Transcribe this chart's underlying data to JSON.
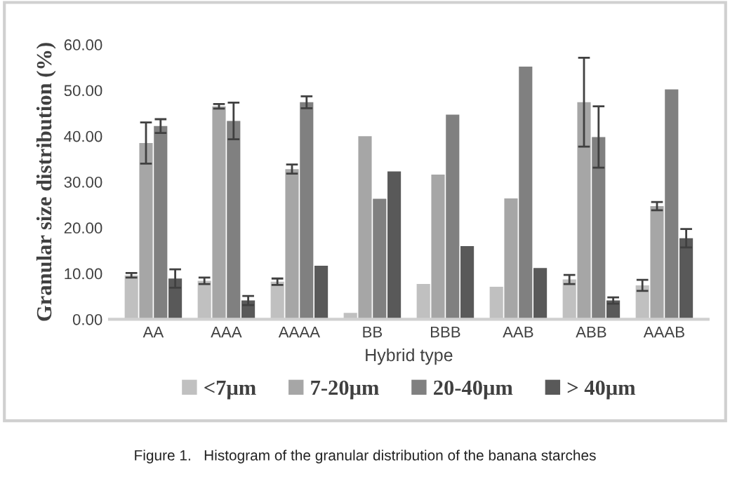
{
  "chart_data": {
    "type": "bar",
    "xlabel": "Hybrid type",
    "ylabel": "Granular size distribution (%)",
    "categories": [
      "AA",
      "AAA",
      "AAAA",
      "BB",
      "BBB",
      "AAB",
      "ABB",
      "AAAB"
    ],
    "series": [
      {
        "name": "<7μm",
        "color": "#c0c0c0",
        "values": [
          9.6,
          8.4,
          8.2,
          1.4,
          7.7,
          7.1,
          8.7,
          7.4
        ],
        "errors": [
          0.5,
          0.7,
          0.7,
          null,
          null,
          null,
          1.0,
          1.2
        ]
      },
      {
        "name": "7-20μm",
        "color": "#a6a6a6",
        "values": [
          38.5,
          46.5,
          32.8,
          40.0,
          31.6,
          26.4,
          47.4,
          24.7
        ],
        "errors": [
          4.5,
          0.5,
          1.0,
          null,
          null,
          null,
          9.7,
          0.9
        ]
      },
      {
        "name": "20-40μm",
        "color": "#808080",
        "values": [
          42.2,
          43.3,
          47.4,
          26.3,
          44.7,
          55.2,
          39.8,
          50.2
        ],
        "errors": [
          1.5,
          4.0,
          1.3,
          null,
          null,
          null,
          6.7,
          null
        ]
      },
      {
        "name": "> 40μm",
        "color": "#595959",
        "values": [
          8.9,
          4.1,
          11.7,
          32.3,
          16.0,
          11.2,
          4.1,
          17.7
        ],
        "errors": [
          2.0,
          1.0,
          null,
          null,
          null,
          null,
          0.7,
          2.0
        ]
      }
    ],
    "ylim": [
      0,
      60
    ],
    "yticks": [
      {
        "value": 0,
        "label": "0.00"
      },
      {
        "value": 10,
        "label": "10.00"
      },
      {
        "value": 20,
        "label": "20.00"
      },
      {
        "value": 30,
        "label": "30.00"
      },
      {
        "value": 40,
        "label": "40.00"
      },
      {
        "value": 50,
        "label": "50.00"
      },
      {
        "value": 60,
        "label": "60.00"
      }
    ],
    "grid": false,
    "legend": "bottom",
    "annotations": [
      "Figure 1.   Histogram of the granular distribution of the banana starches"
    ]
  }
}
